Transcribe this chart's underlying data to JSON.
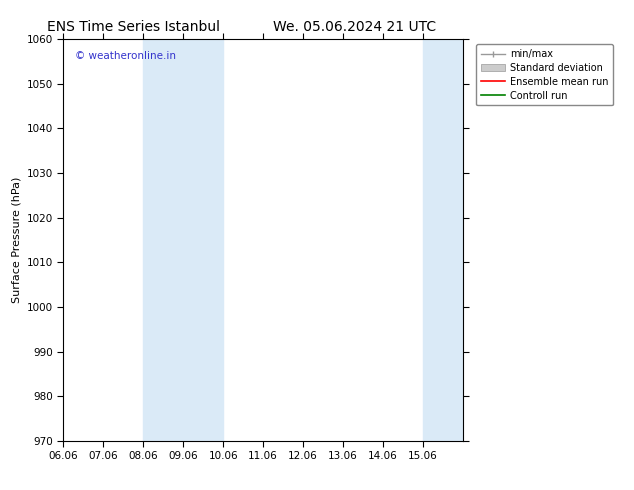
{
  "title_left": "ENS Time Series Istanbul",
  "title_right": "We. 05.06.2024 21 UTC",
  "ylabel": "Surface Pressure (hPa)",
  "ylim": [
    970,
    1060
  ],
  "yticks": [
    970,
    980,
    990,
    1000,
    1010,
    1020,
    1030,
    1040,
    1050,
    1060
  ],
  "xlim": [
    0,
    10
  ],
  "xtick_labels": [
    "06.06",
    "07.06",
    "08.06",
    "09.06",
    "10.06",
    "11.06",
    "12.06",
    "13.06",
    "14.06",
    "15.06"
  ],
  "xtick_positions": [
    0,
    1,
    2,
    3,
    4,
    5,
    6,
    7,
    8,
    9
  ],
  "shaded_bands": [
    {
      "xmin": 2,
      "xmax": 3,
      "color": "#daeaf7"
    },
    {
      "xmin": 3,
      "xmax": 4,
      "color": "#daeaf7"
    },
    {
      "xmin": 9,
      "xmax": 9.5,
      "color": "#daeaf7"
    },
    {
      "xmin": 9.5,
      "xmax": 10,
      "color": "#daeaf7"
    }
  ],
  "watermark": "© weatheronline.in",
  "watermark_color": "#3333cc",
  "bg_color": "#ffffff",
  "plot_bg_color": "#ffffff",
  "title_fontsize": 10,
  "axis_label_fontsize": 8,
  "tick_fontsize": 7.5,
  "watermark_fontsize": 7.5,
  "legend_fontsize": 7,
  "band_color": "#daeaf7"
}
